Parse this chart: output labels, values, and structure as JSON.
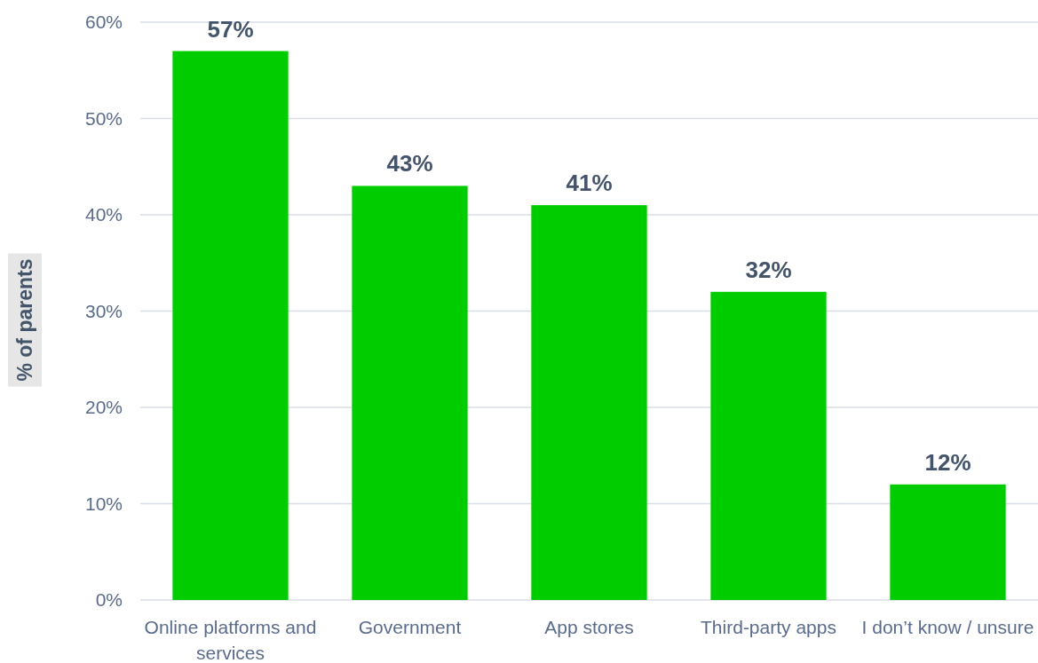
{
  "chart_data": {
    "type": "bar",
    "ylabel": "% of parents",
    "categories": [
      "Online platforms and services",
      "Government",
      "App stores",
      "Third-party apps",
      "I don’t know / unsure"
    ],
    "values": [
      57,
      43,
      41,
      32,
      12
    ],
    "value_labels": [
      "57%",
      "43%",
      "41%",
      "32%",
      "12%"
    ],
    "color": "#00cc00",
    "ylim": [
      0,
      60
    ],
    "yticks": [
      {
        "value": 0,
        "label": "0%"
      },
      {
        "value": 10,
        "label": "10%"
      },
      {
        "value": 20,
        "label": "20%"
      },
      {
        "value": 30,
        "label": "30%"
      },
      {
        "value": 40,
        "label": "40%"
      },
      {
        "value": 50,
        "label": "50%"
      },
      {
        "value": 60,
        "label": "60%"
      }
    ],
    "grid": "y"
  }
}
